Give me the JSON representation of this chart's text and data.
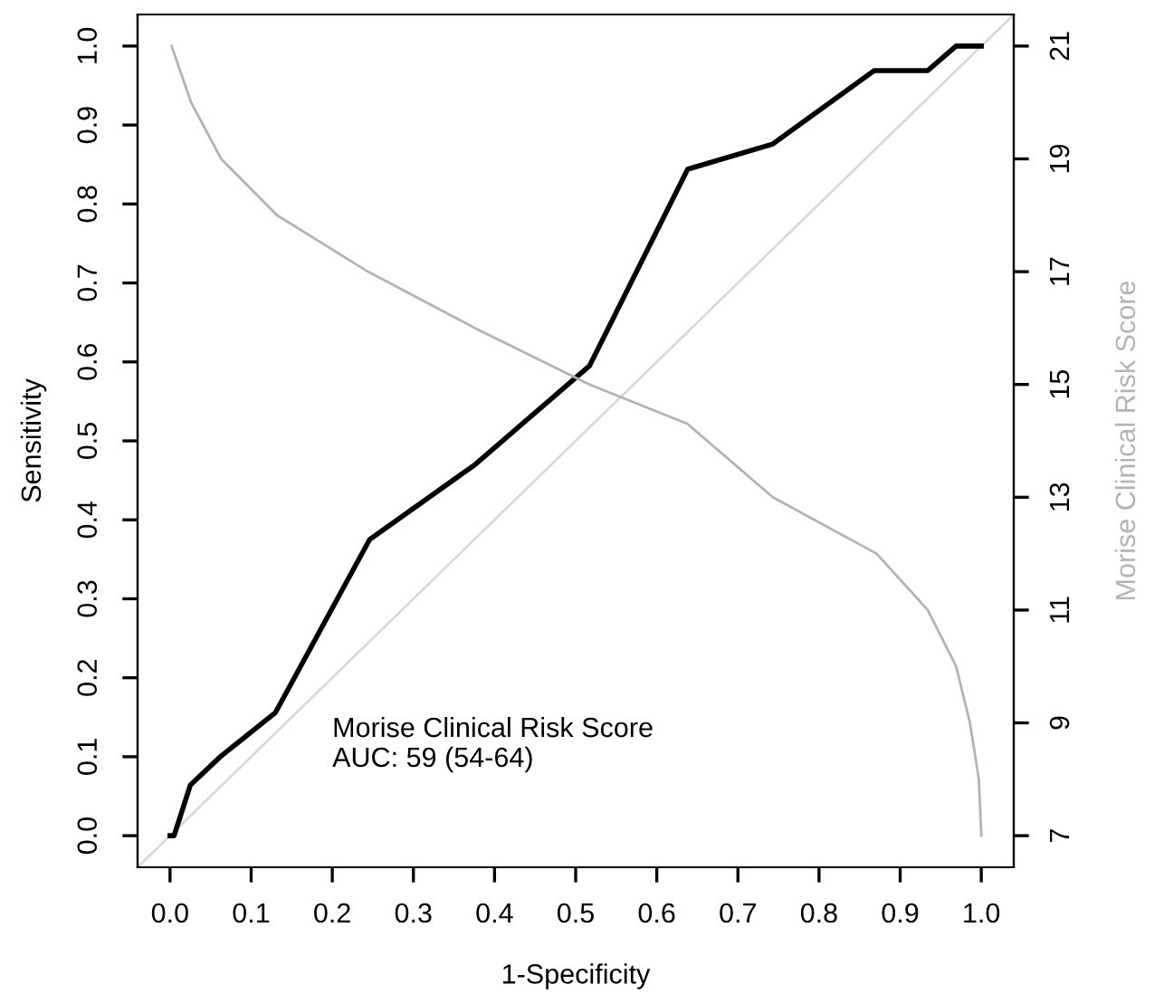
{
  "chart_data": {
    "type": "line",
    "xlabel": "1-Specificity",
    "ylabel": "Sensitivity",
    "y2label": "Morise Clinical Risk Score",
    "xlim": [
      -0.04,
      1.04
    ],
    "ylim": [
      -0.04,
      1.04
    ],
    "y2lim": [
      6.44,
      21.56
    ],
    "xticks": [
      {
        "value": 0,
        "label": "0.0"
      },
      0.1,
      0.2,
      0.3,
      0.4,
      0.5,
      0.6,
      0.7,
      0.8,
      0.9,
      {
        "value": 1,
        "label": "1.0"
      }
    ],
    "yticks": [
      {
        "value": 0,
        "label": "0.0"
      },
      0.1,
      0.2,
      0.3,
      0.4,
      0.5,
      0.6,
      0.7,
      0.8,
      0.9,
      {
        "value": 1,
        "label": "1.0"
      }
    ],
    "y2ticks": [
      7,
      9,
      11,
      13,
      15,
      17,
      19,
      21
    ],
    "grid": false,
    "legend": false,
    "marker": "none",
    "series": [
      {
        "color": "#d9d9d9",
        "x": [
          -0.04,
          1.04
        ],
        "values": [
          -0.04,
          1.04
        ]
      },
      {
        "color": "#000000",
        "x": [
          0,
          0.005,
          0.025,
          0.062,
          0.13,
          0.246,
          0.376,
          0.517,
          0.638,
          0.743,
          0.868,
          0.934,
          0.969,
          1.0
        ],
        "values": [
          0,
          0,
          0.064,
          0.1,
          0.156,
          0.375,
          0.47,
          0.595,
          0.844,
          0.876,
          0.969,
          0.969,
          1.0,
          1.0
        ]
      },
      {
        "color": "#b3b3b3",
        "axis": "y2",
        "x": [
          0.002,
          0.026,
          0.063,
          0.132,
          0.244,
          0.376,
          0.517,
          0.638,
          0.743,
          0.871,
          0.934,
          0.969,
          0.986,
          0.997,
          1.0
        ],
        "values": [
          21,
          20,
          19,
          18,
          17,
          16,
          15,
          14.3,
          13,
          12,
          11,
          10,
          9,
          8,
          7
        ]
      }
    ],
    "annotations": [
      "Morise Clinical Risk Score\nAUC: 59 (54-64)"
    ]
  }
}
